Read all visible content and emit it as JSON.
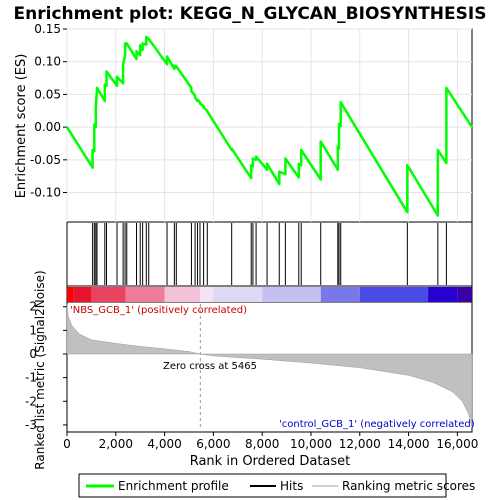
{
  "chart_data": {
    "type": "line",
    "title": "Enrichment plot: KEGG_N_GLYCAN_BIOSYNTHESIS",
    "ylabel_top": "Enrichment score (ES)",
    "ylabel_bottom": "Ranked list metric (Signal2Noise)",
    "xlabel": "Rank in Ordered Dataset",
    "xlim": [
      0,
      16600
    ],
    "xticks": [
      0,
      2000,
      4000,
      6000,
      8000,
      10000,
      12000,
      14000,
      16000
    ],
    "xtick_labels": [
      "0",
      "2,000",
      "4,000",
      "6,000",
      "8,000",
      "10,000",
      "12,000",
      "14,000",
      "16,000"
    ],
    "es_ylim": [
      -0.145,
      0.15
    ],
    "es_yticks": [
      -0.1,
      -0.05,
      0.0,
      0.05,
      0.1,
      0.15
    ],
    "es_ytick_labels": [
      "-0.10",
      "-0.05",
      "0.00",
      "0.05",
      "0.10",
      "0.15"
    ],
    "metric_ylim": [
      -3.3,
      2.2
    ],
    "metric_yticks": [
      -3,
      -2,
      -1,
      0,
      1,
      2
    ],
    "metric_ytick_labels": [
      "-3",
      "-2",
      "-1",
      "0",
      "1",
      "2"
    ],
    "hits": [
      1050,
      1120,
      1180,
      1230,
      1550,
      1620,
      2050,
      2300,
      2380,
      2450,
      2850,
      3000,
      3100,
      3250,
      3350,
      4100,
      4400,
      4480,
      5100,
      5250,
      5350,
      5450,
      5600,
      5750,
      6750,
      7550,
      7620,
      7750,
      8200,
      8700,
      8950,
      9500,
      9600,
      10400,
      11100,
      11150,
      11220,
      13950,
      15200,
      15550
    ],
    "series": [
      {
        "name": "Enrichment profile",
        "color": "#00ff00",
        "x": [
          0,
          1050,
          1050,
          1120,
          1120,
          1180,
          1180,
          1230,
          1230,
          1550,
          1550,
          1620,
          1620,
          2050,
          2050,
          2300,
          2300,
          2380,
          2380,
          2450,
          2450,
          2850,
          2850,
          3000,
          3000,
          3100,
          3100,
          3250,
          3250,
          3350,
          3350,
          4100,
          4100,
          4400,
          4400,
          4480,
          4480,
          5100,
          5100,
          5250,
          5250,
          5350,
          5350,
          5450,
          5450,
          5600,
          5600,
          5750,
          5750,
          6750,
          6750,
          7550,
          7550,
          7620,
          7620,
          7750,
          7750,
          8200,
          8200,
          8700,
          8700,
          8950,
          8950,
          9500,
          9500,
          9600,
          9600,
          10400,
          10400,
          11100,
          11100,
          11150,
          11150,
          11220,
          11220,
          13950,
          13950,
          15200,
          15200,
          15550,
          15550,
          16600
        ],
        "y": [
          0.0,
          -0.062,
          -0.035,
          -0.037,
          0.004,
          0.0,
          0.03,
          0.058,
          0.06,
          0.04,
          0.065,
          0.063,
          0.085,
          0.063,
          0.077,
          0.067,
          0.096,
          0.11,
          0.128,
          0.126,
          0.128,
          0.104,
          0.116,
          0.11,
          0.125,
          0.118,
          0.128,
          0.126,
          0.138,
          0.134,
          0.135,
          0.096,
          0.108,
          0.089,
          0.094,
          0.091,
          0.093,
          0.06,
          0.055,
          0.048,
          0.045,
          0.04,
          0.042,
          0.038,
          0.036,
          0.032,
          0.03,
          0.025,
          0.024,
          -0.035,
          -0.033,
          -0.078,
          -0.058,
          -0.06,
          -0.048,
          -0.05,
          -0.045,
          -0.065,
          -0.056,
          -0.087,
          -0.068,
          -0.072,
          -0.048,
          -0.077,
          -0.056,
          -0.058,
          -0.035,
          -0.08,
          -0.022,
          -0.065,
          -0.03,
          -0.033,
          0.005,
          0.002,
          0.038,
          -0.13,
          -0.058,
          -0.135,
          -0.035,
          -0.055,
          0.06,
          0.0
        ]
      }
    ],
    "metric_profile": [
      [
        0,
        2.1
      ],
      [
        50,
        1.6
      ],
      [
        200,
        1.2
      ],
      [
        500,
        0.85
      ],
      [
        1000,
        0.6
      ],
      [
        2000,
        0.45
      ],
      [
        3000,
        0.32
      ],
      [
        4000,
        0.22
      ],
      [
        5000,
        0.1
      ],
      [
        5465,
        0.0
      ],
      [
        6000,
        -0.08
      ],
      [
        8000,
        -0.22
      ],
      [
        10000,
        -0.38
      ],
      [
        12000,
        -0.58
      ],
      [
        14000,
        -0.9
      ],
      [
        15000,
        -1.2
      ],
      [
        15800,
        -1.6
      ],
      [
        16200,
        -2.0
      ],
      [
        16450,
        -2.5
      ],
      [
        16600,
        -3.1
      ]
    ],
    "zero_cross_label": "Zero cross at 5465",
    "zero_cross_x": 5465,
    "positive_label": "'NBS_GCB_1' (positively correlated)",
    "negative_label": "'control_GCB_1' (negatively correlated)",
    "positive_color": "#cc0000",
    "negative_color": "#0000cc",
    "heat_colors": [
      {
        "from": 0,
        "to": 280,
        "color": "#ff0000"
      },
      {
        "from": 280,
        "to": 1000,
        "color": "#e8132c"
      },
      {
        "from": 1000,
        "to": 2400,
        "color": "#e84462"
      },
      {
        "from": 2400,
        "to": 4000,
        "color": "#ee7d9a"
      },
      {
        "from": 4000,
        "to": 5465,
        "color": "#f2c2d8"
      },
      {
        "from": 5465,
        "to": 6000,
        "color": "#f2e4f2"
      },
      {
        "from": 6000,
        "to": 8000,
        "color": "#ddd8f4"
      },
      {
        "from": 8000,
        "to": 10400,
        "color": "#c4c0f2"
      },
      {
        "from": 10400,
        "to": 12000,
        "color": "#7878e8"
      },
      {
        "from": 12000,
        "to": 14800,
        "color": "#4a4ae4"
      },
      {
        "from": 14800,
        "to": 16000,
        "color": "#2800d0"
      },
      {
        "from": 16000,
        "to": 16600,
        "color": "#3c00a8"
      }
    ],
    "legend": [
      {
        "label": "Enrichment profile",
        "color": "#00ff00"
      },
      {
        "label": "Hits",
        "color": "#000000"
      },
      {
        "label": "Ranking metric scores",
        "color": "#d0d0d0"
      }
    ]
  }
}
